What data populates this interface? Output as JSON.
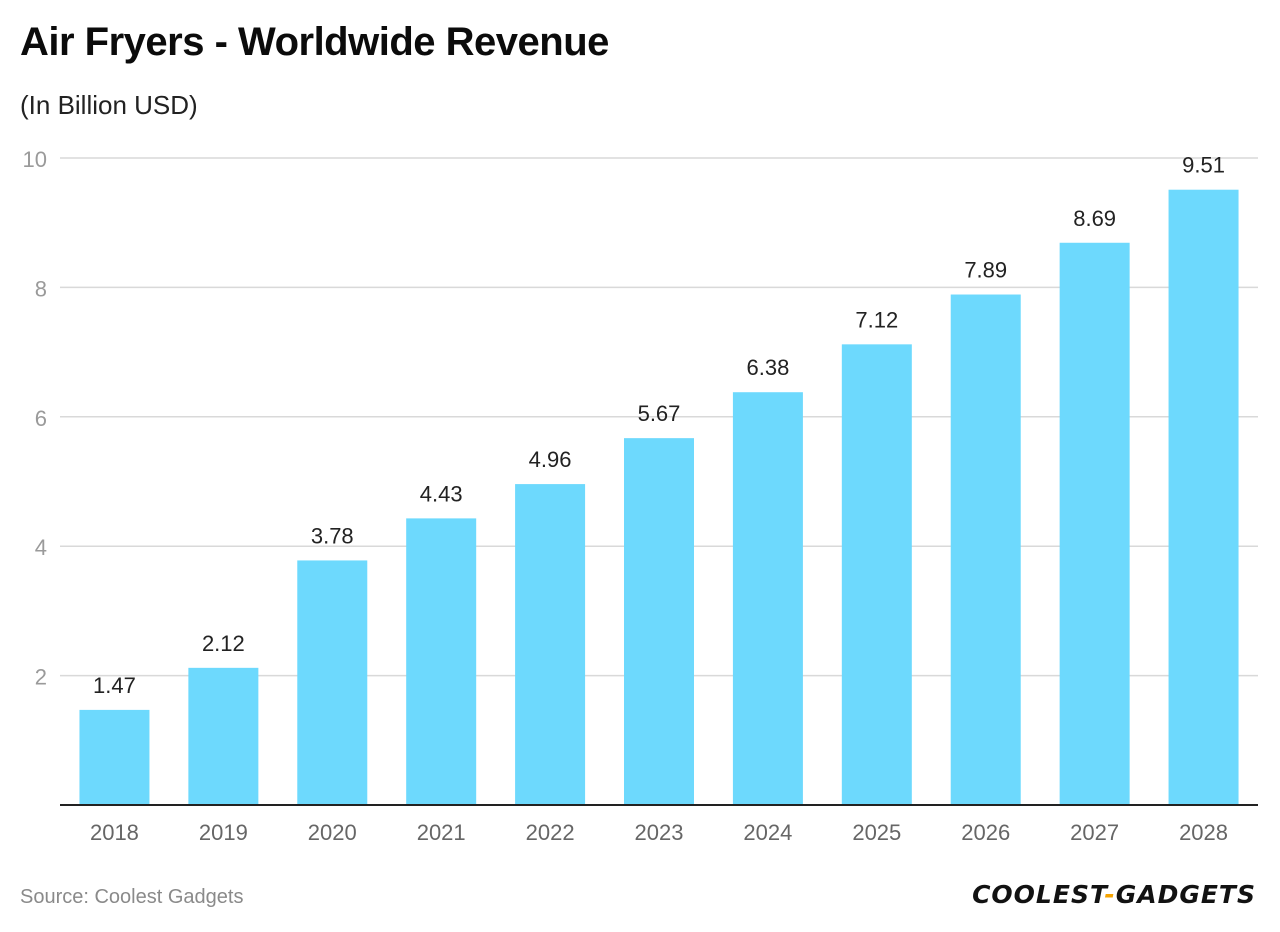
{
  "title": "Air Fryers - Worldwide Revenue",
  "subtitle": "(In Billion USD)",
  "source": "Source:  Coolest Gadgets",
  "logo": {
    "left": "COOLEST",
    "separator": "-",
    "right": "GADGETS",
    "accent_color": "#f5a300"
  },
  "colors": {
    "bar": "#6dd9fd",
    "grid": "#d9d9d9",
    "axis": "#222222",
    "tick_label": "#9a9a9a",
    "category_label": "#666666",
    "value_label": "#222222"
  },
  "chart_data": {
    "type": "bar",
    "title": "Air Fryers - Worldwide Revenue",
    "subtitle": "(In Billion USD)",
    "xlabel": "",
    "ylabel": "",
    "categories": [
      "2018",
      "2019",
      "2020",
      "2021",
      "2022",
      "2023",
      "2024",
      "2025",
      "2026",
      "2027",
      "2028"
    ],
    "values": [
      1.47,
      2.12,
      3.78,
      4.43,
      4.96,
      5.67,
      6.38,
      7.12,
      7.89,
      8.69,
      9.51
    ],
    "value_labels": [
      "1.47",
      "2.12",
      "3.78",
      "4.43",
      "4.96",
      "5.67",
      "6.38",
      "7.12",
      "7.89",
      "8.69",
      "9.51"
    ],
    "ylim": [
      0,
      10
    ],
    "yticks": [
      2,
      4,
      6,
      8,
      10
    ],
    "ytick_labels": [
      "2",
      "4",
      "6",
      "8",
      "10"
    ],
    "grid": true,
    "legend": "none"
  }
}
